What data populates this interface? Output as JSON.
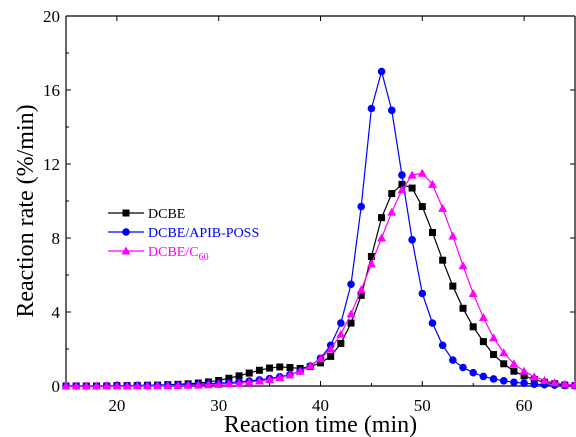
{
  "chart_data": {
    "type": "line",
    "xlabel": "Reaction time (min)",
    "ylabel": "Reaction rate  (%/min)",
    "xlim": [
      15,
      65
    ],
    "ylim": [
      0,
      20
    ],
    "xticks": [
      20,
      30,
      40,
      50,
      60
    ],
    "yticks": [
      0,
      4,
      8,
      12,
      16,
      20
    ],
    "grid": false,
    "legend_position": "middle-left",
    "series": [
      {
        "name": "DCBE",
        "color": "#000000",
        "marker": "square",
        "points": [
          [
            15,
            0
          ],
          [
            16,
            0
          ],
          [
            17,
            0
          ],
          [
            18,
            0
          ],
          [
            19,
            0
          ],
          [
            20,
            0.02
          ],
          [
            21,
            0.02
          ],
          [
            22,
            0.03
          ],
          [
            23,
            0.04
          ],
          [
            24,
            0.05
          ],
          [
            25,
            0.07
          ],
          [
            26,
            0.09
          ],
          [
            27,
            0.12
          ],
          [
            28,
            0.16
          ],
          [
            29,
            0.22
          ],
          [
            30,
            0.3
          ],
          [
            31,
            0.42
          ],
          [
            32,
            0.55
          ],
          [
            33,
            0.7
          ],
          [
            34,
            0.85
          ],
          [
            35,
            0.97
          ],
          [
            36,
            1.03
          ],
          [
            37,
            1.0
          ],
          [
            38,
            0.95
          ],
          [
            39,
            1.05
          ],
          [
            40,
            1.25
          ],
          [
            41,
            1.6
          ],
          [
            42,
            2.3
          ],
          [
            43,
            3.4
          ],
          [
            44,
            4.9
          ],
          [
            45,
            7.0
          ],
          [
            46,
            9.1
          ],
          [
            47,
            10.4
          ],
          [
            48,
            10.9
          ],
          [
            49,
            10.7
          ],
          [
            50,
            9.7
          ],
          [
            51,
            8.3
          ],
          [
            52,
            6.8
          ],
          [
            53,
            5.4
          ],
          [
            54,
            4.2
          ],
          [
            55,
            3.2
          ],
          [
            56,
            2.4
          ],
          [
            57,
            1.7
          ],
          [
            58,
            1.2
          ],
          [
            59,
            0.8
          ],
          [
            60,
            0.55
          ],
          [
            61,
            0.35
          ],
          [
            62,
            0.2
          ],
          [
            63,
            0.12
          ],
          [
            64,
            0.05
          ],
          [
            65,
            0.02
          ]
        ]
      },
      {
        "name": "DCBE/APIB-POSS",
        "color": "#0000ff",
        "marker": "circle",
        "points": [
          [
            15,
            0
          ],
          [
            16,
            0
          ],
          [
            17,
            0
          ],
          [
            18,
            0
          ],
          [
            19,
            0.01
          ],
          [
            20,
            0.01
          ],
          [
            21,
            0.02
          ],
          [
            22,
            0.03
          ],
          [
            23,
            0.03
          ],
          [
            24,
            0.04
          ],
          [
            25,
            0.05
          ],
          [
            26,
            0.06
          ],
          [
            27,
            0.08
          ],
          [
            28,
            0.1
          ],
          [
            29,
            0.12
          ],
          [
            30,
            0.15
          ],
          [
            31,
            0.18
          ],
          [
            32,
            0.22
          ],
          [
            33,
            0.27
          ],
          [
            34,
            0.33
          ],
          [
            35,
            0.4
          ],
          [
            36,
            0.5
          ],
          [
            37,
            0.62
          ],
          [
            38,
            0.8
          ],
          [
            39,
            1.08
          ],
          [
            40,
            1.5
          ],
          [
            41,
            2.2
          ],
          [
            42,
            3.4
          ],
          [
            43,
            5.5
          ],
          [
            44,
            9.7
          ],
          [
            45,
            15.0
          ],
          [
            46,
            17.0
          ],
          [
            47,
            14.9
          ],
          [
            48,
            11.4
          ],
          [
            49,
            7.9
          ],
          [
            50,
            5.0
          ],
          [
            51,
            3.4
          ],
          [
            52,
            2.2
          ],
          [
            53,
            1.4
          ],
          [
            54,
            1.0
          ],
          [
            55,
            0.72
          ],
          [
            56,
            0.52
          ],
          [
            57,
            0.38
          ],
          [
            58,
            0.28
          ],
          [
            59,
            0.2
          ],
          [
            60,
            0.15
          ],
          [
            61,
            0.1
          ],
          [
            62,
            0.07
          ],
          [
            63,
            0.05
          ],
          [
            64,
            0.03
          ],
          [
            65,
            0.02
          ]
        ]
      },
      {
        "name": "DCBE/C60",
        "color": "#ff00ff",
        "marker": "triangle",
        "points": [
          [
            15,
            0
          ],
          [
            16,
            0
          ],
          [
            17,
            0
          ],
          [
            18,
            0
          ],
          [
            19,
            0
          ],
          [
            20,
            0
          ],
          [
            21,
            0
          ],
          [
            22,
            0.01
          ],
          [
            23,
            0.01
          ],
          [
            24,
            0.02
          ],
          [
            25,
            0.02
          ],
          [
            26,
            0.03
          ],
          [
            27,
            0.04
          ],
          [
            28,
            0.05
          ],
          [
            29,
            0.07
          ],
          [
            30,
            0.09
          ],
          [
            31,
            0.12
          ],
          [
            32,
            0.15
          ],
          [
            33,
            0.2
          ],
          [
            34,
            0.27
          ],
          [
            35,
            0.35
          ],
          [
            36,
            0.45
          ],
          [
            37,
            0.6
          ],
          [
            38,
            0.8
          ],
          [
            39,
            1.08
          ],
          [
            40,
            1.47
          ],
          [
            41,
            2.0
          ],
          [
            42,
            2.8
          ],
          [
            43,
            3.9
          ],
          [
            44,
            5.2
          ],
          [
            45,
            6.6
          ],
          [
            46,
            8.0
          ],
          [
            47,
            9.4
          ],
          [
            48,
            10.6
          ],
          [
            49,
            11.4
          ],
          [
            50,
            11.5
          ],
          [
            51,
            10.9
          ],
          [
            52,
            9.6
          ],
          [
            53,
            8.1
          ],
          [
            54,
            6.5
          ],
          [
            55,
            5.0
          ],
          [
            56,
            3.7
          ],
          [
            57,
            2.6
          ],
          [
            58,
            1.8
          ],
          [
            59,
            1.2
          ],
          [
            60,
            0.8
          ],
          [
            61,
            0.5
          ],
          [
            62,
            0.3
          ],
          [
            63,
            0.18
          ],
          [
            64,
            0.1
          ],
          [
            65,
            0.05
          ]
        ]
      }
    ]
  },
  "legend": [
    {
      "text": "DCBE",
      "subscript": ""
    },
    {
      "text": "DCBE/APIB-POSS",
      "subscript": ""
    },
    {
      "text": "DCBE/C",
      "subscript": "60"
    }
  ]
}
